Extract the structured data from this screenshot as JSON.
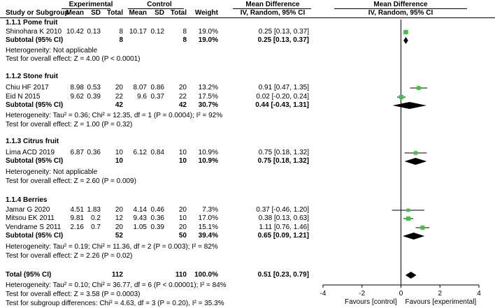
{
  "header": {
    "group1": "Experimental",
    "group2": "Control",
    "col_study": "Study or Subgroup",
    "col_mean": "Mean",
    "col_sd": "SD",
    "col_total": "Total",
    "col_weight": "Weight",
    "col_md": "Mean Difference",
    "col_md_method": "IV, Random, 95% CI",
    "plot_md": "Mean Difference",
    "plot_method": "IV, Random, 95% CI"
  },
  "subgroups": [
    {
      "title": "1.1.1 Pome fruit",
      "studies": [
        {
          "name": "Shinohara K 2010",
          "e_mean": "10.42",
          "e_sd": "0.13",
          "e_total": "8",
          "c_mean": "10.17",
          "c_sd": "0.12",
          "c_total": "8",
          "weight": "19.0%",
          "md": "0.25 [0.13, 0.37]"
        }
      ],
      "subtotal": {
        "label": "Subtotal (95% CI)",
        "e_total": "8",
        "c_total": "8",
        "weight": "19.0%",
        "md": "0.25 [0.13, 0.37]"
      },
      "heterogeneity": "Heterogeneity: Not applicable",
      "overall": "Test for overall effect: Z = 4.00 (P < 0.0001)"
    },
    {
      "title": "1.1.2 Stone fruit",
      "studies": [
        {
          "name": "Chiu HF 2017",
          "e_mean": "8.98",
          "e_sd": "0.53",
          "e_total": "20",
          "c_mean": "8.07",
          "c_sd": "0.86",
          "c_total": "20",
          "weight": "13.2%",
          "md": "0.91 [0.47, 1.35]"
        },
        {
          "name": "Eid N 2015",
          "e_mean": "9.62",
          "e_sd": "0.39",
          "e_total": "22",
          "c_mean": "9.6",
          "c_sd": "0.37",
          "c_total": "22",
          "weight": "17.5%",
          "md": "0.02 [-0.20, 0.24]"
        }
      ],
      "subtotal": {
        "label": "Subtotal (95% CI)",
        "e_total": "42",
        "c_total": "42",
        "weight": "30.7%",
        "md": "0.44 [-0.43, 1.31]"
      },
      "heterogeneity": "Heterogeneity: Tau² = 0.36; Chi² = 12.35, df = 1 (P = 0.0004); I² = 92%",
      "overall": "Test for overall effect: Z = 1.00 (P = 0.32)"
    },
    {
      "title": "1.1.3 Citrus fruit",
      "studies": [
        {
          "name": "Lima ACD 2019",
          "e_mean": "6.87",
          "e_sd": "0.36",
          "e_total": "10",
          "c_mean": "6.12",
          "c_sd": "0.84",
          "c_total": "10",
          "weight": "10.9%",
          "md": "0.75 [0.18, 1.32]"
        }
      ],
      "subtotal": {
        "label": "Subtotal (95% CI)",
        "e_total": "10",
        "c_total": "10",
        "weight": "10.9%",
        "md": "0.75 [0.18, 1.32]"
      },
      "heterogeneity": "Heterogeneity: Not applicable",
      "overall": "Test for overall effect: Z = 2.60 (P = 0.009)"
    },
    {
      "title": "1.1.4 Berries",
      "studies": [
        {
          "name": "Jamar G 2020",
          "e_mean": "4.51",
          "e_sd": "1.83",
          "e_total": "20",
          "c_mean": "4.14",
          "c_sd": "0.46",
          "c_total": "20",
          "weight": "7.3%",
          "md": "0.37 [-0.46, 1.20]"
        },
        {
          "name": "Mitsou EK 2011",
          "e_mean": "9.81",
          "e_sd": "0.2",
          "e_total": "12",
          "c_mean": "9.43",
          "c_sd": "0.36",
          "c_total": "10",
          "weight": "17.0%",
          "md": "0.38 [0.13, 0.63]"
        },
        {
          "name": "Vendrame S 2011",
          "e_mean": "2.16",
          "e_sd": "0.7",
          "e_total": "20",
          "c_mean": "1.05",
          "c_sd": "0.39",
          "c_total": "20",
          "weight": "15.1%",
          "md": "1.11 [0.76, 1.46]"
        }
      ],
      "subtotal": {
        "label": "Subtotal (95% CI)",
        "e_total": "52",
        "c_total": "50",
        "weight": "39.4%",
        "md": "0.65 [0.09, 1.21]"
      },
      "heterogeneity": "Heterogeneity: Tau² = 0.19; Chi² = 11.36, df = 2 (P = 0.003); I² = 82%",
      "overall": "Test for overall effect: Z = 2.26 (P = 0.02)"
    }
  ],
  "total": {
    "label": "Total (95% CI)",
    "e_total": "112",
    "c_total": "110",
    "weight": "100.0%",
    "md": "0.51 [0.23, 0.79]"
  },
  "footer": {
    "heterogeneity": "Heterogeneity: Tau² = 0.10; Chi² = 36.77, df = 6 (P < 0.00001); I² = 84%",
    "overall": "Test for overall effect: Z = 3.58 (P = 0.0003)",
    "subgroup": "Test for subgroup differences: Chi² = 4.63, df = 3 (P = 0.20), I² = 35.3%"
  },
  "chart_data": {
    "type": "forest",
    "xlim": [
      -4,
      4
    ],
    "ticks": [
      "-4",
      "-2",
      "0",
      "2",
      "4"
    ],
    "tick_values": [
      -4,
      -2,
      0,
      2,
      4
    ],
    "xlabel_left": "Favours [control]",
    "xlabel_right": "Favours [experimental]",
    "study_color": "#33cc33",
    "studies": [
      {
        "name": "Shinohara K 2010",
        "md": 0.25,
        "lo": 0.13,
        "hi": 0.37,
        "weight": 19.0
      },
      {
        "name": "Chiu HF 2017",
        "md": 0.91,
        "lo": 0.47,
        "hi": 1.35,
        "weight": 13.2
      },
      {
        "name": "Eid N 2015",
        "md": 0.02,
        "lo": -0.2,
        "hi": 0.24,
        "weight": 17.5
      },
      {
        "name": "Lima ACD 2019",
        "md": 0.75,
        "lo": 0.18,
        "hi": 1.32,
        "weight": 10.9
      },
      {
        "name": "Jamar G 2020",
        "md": 0.37,
        "lo": -0.46,
        "hi": 1.2,
        "weight": 7.3
      },
      {
        "name": "Mitsou EK 2011",
        "md": 0.38,
        "lo": 0.13,
        "hi": 0.63,
        "weight": 17.0
      },
      {
        "name": "Vendrame S 2011",
        "md": 1.11,
        "lo": 0.76,
        "hi": 1.46,
        "weight": 15.1
      }
    ],
    "subtotals": [
      {
        "name": "Pome fruit",
        "md": 0.25,
        "lo": 0.13,
        "hi": 0.37
      },
      {
        "name": "Stone fruit",
        "md": 0.44,
        "lo": -0.43,
        "hi": 1.31
      },
      {
        "name": "Citrus fruit",
        "md": 0.75,
        "lo": 0.18,
        "hi": 1.32
      },
      {
        "name": "Berries",
        "md": 0.65,
        "lo": 0.09,
        "hi": 1.21
      }
    ],
    "overall": {
      "md": 0.51,
      "lo": 0.23,
      "hi": 0.79
    }
  }
}
